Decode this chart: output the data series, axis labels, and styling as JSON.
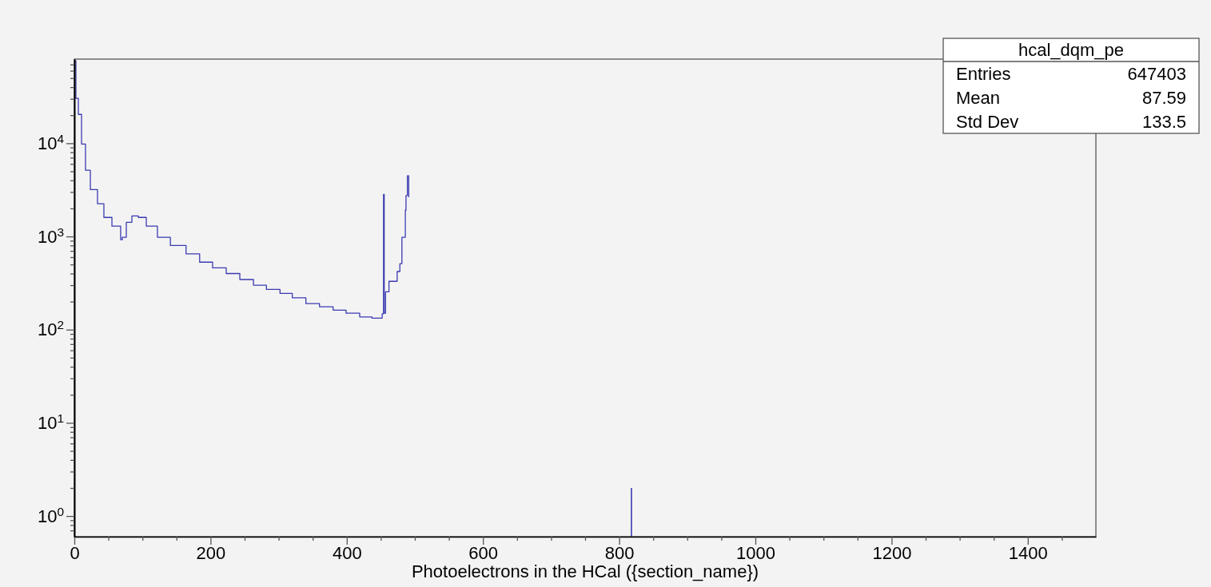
{
  "chart_data": {
    "type": "step",
    "title": "hcal_dqm_pe",
    "xlabel": "Photoelectrons in the HCal ({section_name})",
    "x": [
      0,
      2.3,
      5.9,
      10.6,
      16.4,
      23.5,
      34,
      43.4,
      55.2,
      68,
      70.4,
      76.3,
      84.5,
      93.9,
      105.6,
      122,
      141,
      164,
      184,
      203,
      223,
      243,
      263,
      282,
      302,
      320,
      340,
      360,
      380,
      399,
      419,
      437,
      452,
      454,
      455,
      457,
      462,
      474,
      478,
      481,
      486,
      487,
      489,
      491
    ],
    "series": [
      {
        "color": "#3b3bb3",
        "values": [
          76600,
          30300,
          20400,
          9800,
          5130,
          3180,
          2240,
          1600,
          1290,
          922,
          980,
          1420,
          1660,
          1600,
          1290,
          980,
          800,
          650,
          530,
          460,
          400,
          345,
          300,
          270,
          245,
          220,
          190,
          176,
          162,
          150,
          137,
          133,
          148,
          2830,
          150,
          255,
          330,
          420,
          510,
          980,
          1910,
          2750,
          4470,
          2630
        ]
      },
      {
        "type": "bar",
        "x": [
          818
        ],
        "color": "#3b3bb3",
        "values": [
          2
        ]
      }
    ],
    "log": "y",
    "grid": false,
    "xlim": [
      0,
      1500
    ],
    "xticks": [
      0,
      {
        "value": 50,
        "label": null
      },
      {
        "value": 100,
        "label": null
      },
      {
        "value": 150,
        "label": null
      },
      200,
      {
        "value": 250,
        "label": null
      },
      {
        "value": 300,
        "label": null
      },
      {
        "value": 350,
        "label": null
      },
      400,
      {
        "value": 450,
        "label": null
      },
      {
        "value": 500,
        "label": null
      },
      {
        "value": 550,
        "label": null
      },
      600,
      {
        "value": 650,
        "label": null
      },
      {
        "value": 700,
        "label": null
      },
      {
        "value": 750,
        "label": null
      },
      800,
      {
        "value": 850,
        "label": null
      },
      {
        "value": 900,
        "label": null
      },
      {
        "value": 950,
        "label": null
      },
      1000,
      {
        "value": 1050,
        "label": null
      },
      {
        "value": 1100,
        "label": null
      },
      {
        "value": 1150,
        "label": null
      },
      1200,
      {
        "value": 1250,
        "label": null
      },
      {
        "value": 1300,
        "label": null
      },
      {
        "value": 1350,
        "label": null
      },
      1400,
      {
        "value": 1450,
        "label": null
      }
    ],
    "ylim": [
      0.6,
      80000
    ],
    "yticks": [
      {
        "value": 0.7,
        "label": null
      },
      {
        "value": 0.8,
        "label": null
      },
      {
        "value": 0.9,
        "label": null
      },
      {
        "value": 1,
        "label": "10$^{0}$"
      },
      {
        "value": 2,
        "label": null
      },
      {
        "value": 3,
        "label": null
      },
      {
        "value": 4,
        "label": null
      },
      {
        "value": 5,
        "label": null
      },
      {
        "value": 6,
        "label": null
      },
      {
        "value": 7,
        "label": null
      },
      {
        "value": 8,
        "label": null
      },
      {
        "value": 9,
        "label": null
      },
      {
        "value": 10,
        "label": "10$^{1}$"
      },
      {
        "value": 20,
        "label": null
      },
      {
        "value": 30,
        "label": null
      },
      {
        "value": 40,
        "label": null
      },
      {
        "value": 50,
        "label": null
      },
      {
        "value": 60,
        "label": null
      },
      {
        "value": 70,
        "label": null
      },
      {
        "value": 80,
        "label": null
      },
      {
        "value": 90,
        "label": null
      },
      {
        "value": 100,
        "label": "10$^{2}$"
      },
      {
        "value": 200,
        "label": null
      },
      {
        "value": 300,
        "label": null
      },
      {
        "value": 400,
        "label": null
      },
      {
        "value": 500,
        "label": null
      },
      {
        "value": 600,
        "label": null
      },
      {
        "value": 700,
        "label": null
      },
      {
        "value": 800,
        "label": null
      },
      {
        "value": 900,
        "label": null
      },
      {
        "value": 1000,
        "label": "10$^{3}$"
      },
      {
        "value": 2000,
        "label": null
      },
      {
        "value": 3000,
        "label": null
      },
      {
        "value": 4000,
        "label": null
      },
      {
        "value": 5000,
        "label": null
      },
      {
        "value": 6000,
        "label": null
      },
      {
        "value": 7000,
        "label": null
      },
      {
        "value": 8000,
        "label": null
      },
      {
        "value": 9000,
        "label": null
      },
      {
        "value": 10000,
        "label": "10$^{4}$"
      },
      {
        "value": 20000,
        "label": null
      },
      {
        "value": 30000,
        "label": null
      },
      {
        "value": 40000,
        "label": null
      },
      {
        "value": 50000,
        "label": null
      },
      {
        "value": 60000,
        "label": null
      },
      {
        "value": 70000,
        "label": null
      }
    ],
    "annotations": [
      "Entries",
      "647403",
      "Mean",
      "87.59",
      "Std Dev",
      "133.5"
    ]
  }
}
